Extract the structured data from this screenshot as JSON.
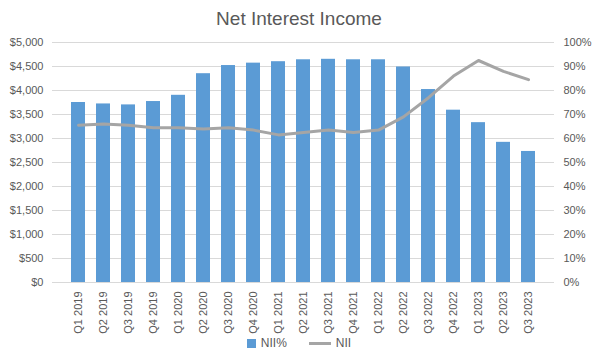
{
  "chart_data": {
    "type": "bar",
    "title": "Net Interest Income",
    "categories": [
      "Q1 2019",
      "Q2 2019",
      "Q3 2019",
      "Q4 2019",
      "Q1 2020",
      "Q2 2020",
      "Q3 2020",
      "Q4 2020",
      "Q1 2021",
      "Q2 2021",
      "Q3 2021",
      "Q4 2021",
      "Q1 2022",
      "Q2 2022",
      "Q3 2022",
      "Q4 2022",
      "Q1 2023",
      "Q2 2023",
      "Q3 2023"
    ],
    "series": [
      {
        "name": "NII%",
        "type": "bar",
        "color": "#5b9bd5",
        "values": [
          3750,
          3720,
          3700,
          3770,
          3900,
          4350,
          4520,
          4570,
          4600,
          4640,
          4650,
          4640,
          4640,
          4490,
          4020,
          3590,
          3330,
          2920,
          2730
        ]
      },
      {
        "name": "NII",
        "type": "line",
        "color": "#a5a5a5",
        "axis": "y2",
        "values": [
          65.5,
          66,
          65.5,
          64.5,
          64.5,
          64,
          64.5,
          63.5,
          61.5,
          62.5,
          63.5,
          62.5,
          63.5,
          69,
          77,
          86,
          92.5,
          88,
          84.5
        ]
      }
    ],
    "ylim": [
      0,
      5000
    ],
    "yticks": [
      {
        "value": 0,
        "label": "$0"
      },
      {
        "value": 500,
        "label": "$500"
      },
      {
        "value": 1000,
        "label": "$1,000"
      },
      {
        "value": 1500,
        "label": "$1,500"
      },
      {
        "value": 2000,
        "label": "$2,000"
      },
      {
        "value": 2500,
        "label": "$2,500"
      },
      {
        "value": 3000,
        "label": "$3,000"
      },
      {
        "value": 3500,
        "label": "$3,500"
      },
      {
        "value": 4000,
        "label": "$4,000"
      },
      {
        "value": 4500,
        "label": "$4,500"
      },
      {
        "value": 5000,
        "label": "$5,000"
      }
    ],
    "y2lim": [
      0,
      100
    ],
    "y2ticks": [
      {
        "value": 0,
        "label": "0%"
      },
      {
        "value": 10,
        "label": "10%"
      },
      {
        "value": 20,
        "label": "20%"
      },
      {
        "value": 30,
        "label": "30%"
      },
      {
        "value": 40,
        "label": "40%"
      },
      {
        "value": 50,
        "label": "50%"
      },
      {
        "value": 60,
        "label": "60%"
      },
      {
        "value": 70,
        "label": "70%"
      },
      {
        "value": 80,
        "label": "80%"
      },
      {
        "value": 90,
        "label": "90%"
      },
      {
        "value": 100,
        "label": "100%"
      }
    ],
    "grid": true,
    "legend": "bottom"
  }
}
